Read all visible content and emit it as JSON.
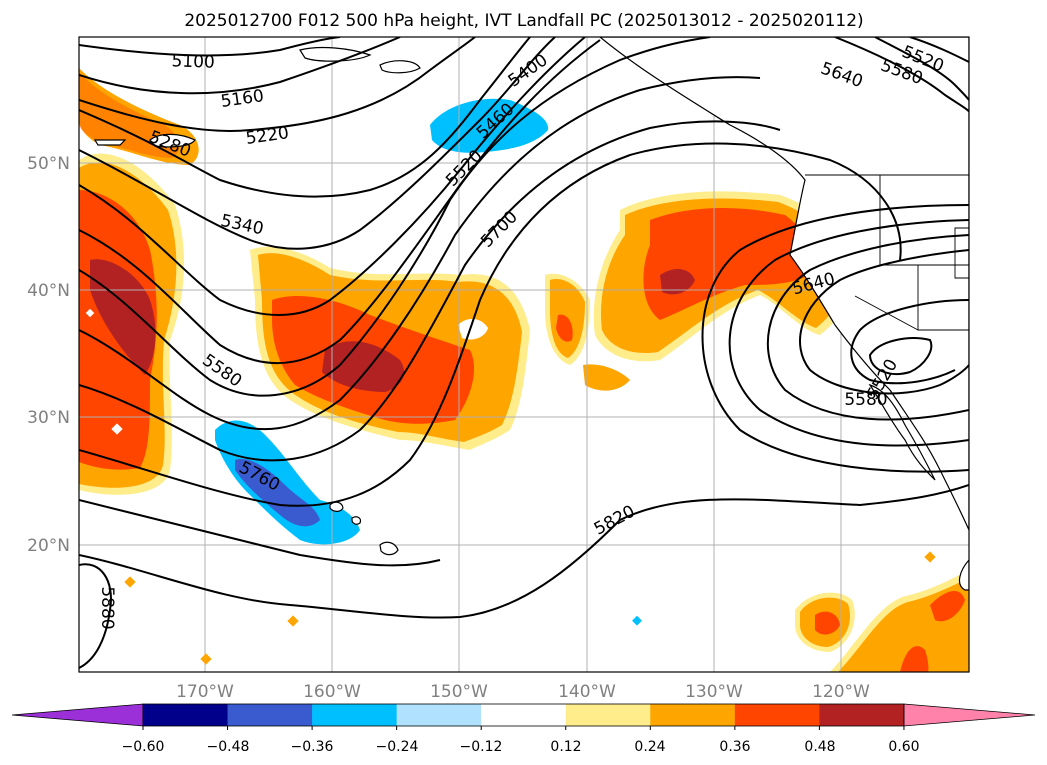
{
  "title": "2025012700 F012 500 hPa height, IVT Landfall PC (2025013012 - 2025020112)",
  "map": {
    "lat_labels": [
      {
        "text": "50°N",
        "lat": 50
      },
      {
        "text": "40°N",
        "lat": 40
      },
      {
        "text": "30°N",
        "lat": 30
      },
      {
        "text": "20°N",
        "lat": 20
      }
    ],
    "lon_labels": [
      {
        "text": "170°W",
        "lon": -170
      },
      {
        "text": "160°W",
        "lon": -160
      },
      {
        "text": "150°W",
        "lon": -150
      },
      {
        "text": "140°W",
        "lon": -140
      },
      {
        "text": "130°W",
        "lon": -130
      },
      {
        "text": "120°W",
        "lon": -120
      }
    ],
    "contour_labels": [
      {
        "text": "5100"
      },
      {
        "text": "5160"
      },
      {
        "text": "5220"
      },
      {
        "text": "5280"
      },
      {
        "text": "5340"
      },
      {
        "text": "5400"
      },
      {
        "text": "5460"
      },
      {
        "text": "5520"
      },
      {
        "text": "5580"
      },
      {
        "text": "5640"
      },
      {
        "text": "5700"
      },
      {
        "text": "5760"
      },
      {
        "text": "5820"
      },
      {
        "text": "5880"
      },
      {
        "text": "5520"
      },
      {
        "text": "5580"
      },
      {
        "text": "5640"
      },
      {
        "text": "5640"
      },
      {
        "text": "5580"
      },
      {
        "text": "5520"
      }
    ]
  },
  "colorbar": {
    "ticks": [
      "−0.60",
      "−0.48",
      "−0.36",
      "−0.24",
      "−0.12",
      "0.12",
      "0.24",
      "0.36",
      "0.48",
      "0.60"
    ],
    "colors": [
      "#9b30d9",
      "#00008b",
      "#3a5bd0",
      "#00bfff",
      "#b0e2ff",
      "#ffffff",
      "#ffec8b",
      "#ffa500",
      "#ff4500",
      "#b22222",
      "#ff82ab"
    ]
  }
}
